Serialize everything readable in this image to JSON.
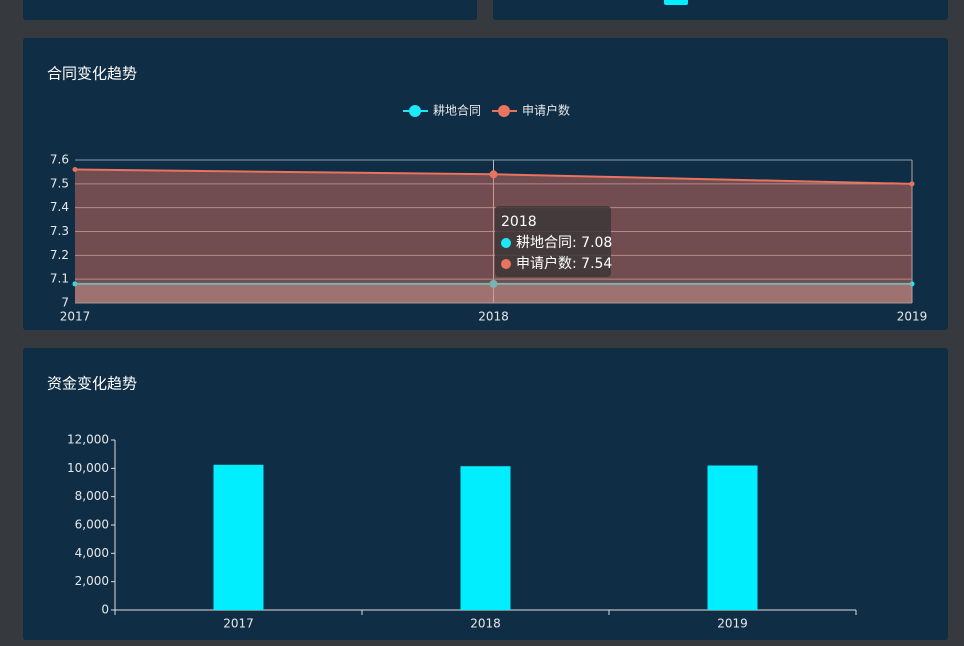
{
  "chart_data": [
    {
      "type": "line",
      "title": "合同变化趋势",
      "categories": [
        "2017",
        "2018",
        "2019"
      ],
      "series": [
        {
          "name": "耕地合同",
          "color": "#1de9f6",
          "values": [
            7.08,
            7.08,
            7.08
          ]
        },
        {
          "name": "申请户数",
          "color": "#e8735f",
          "values": [
            7.56,
            7.54,
            7.5
          ]
        }
      ],
      "ylim": [
        7,
        7.6
      ],
      "yticks": [
        7,
        7.1,
        7.2,
        7.3,
        7.4,
        7.5,
        7.6
      ],
      "grid": true,
      "area": true,
      "legend": "top",
      "tooltip": {
        "title": "2018",
        "items": [
          "耕地合同: 7.08",
          "申请户数: 7.54"
        ]
      }
    },
    {
      "type": "bar",
      "title": "资金变化趋势",
      "categories": [
        "2017",
        "2018",
        "2019"
      ],
      "values": [
        10250,
        10150,
        10200
      ],
      "color": "#00eeff",
      "ylim": [
        0,
        12000
      ],
      "yticks": [
        0,
        {
          "value": 2000,
          "label": "2,000"
        },
        {
          "value": 4000,
          "label": "4,000"
        },
        {
          "value": 6000,
          "label": "6,000"
        },
        {
          "value": 8000,
          "label": "8,000"
        },
        {
          "value": 10000,
          "label": "10,000"
        },
        {
          "value": 12000,
          "label": "12,000"
        }
      ],
      "grid": false
    }
  ]
}
